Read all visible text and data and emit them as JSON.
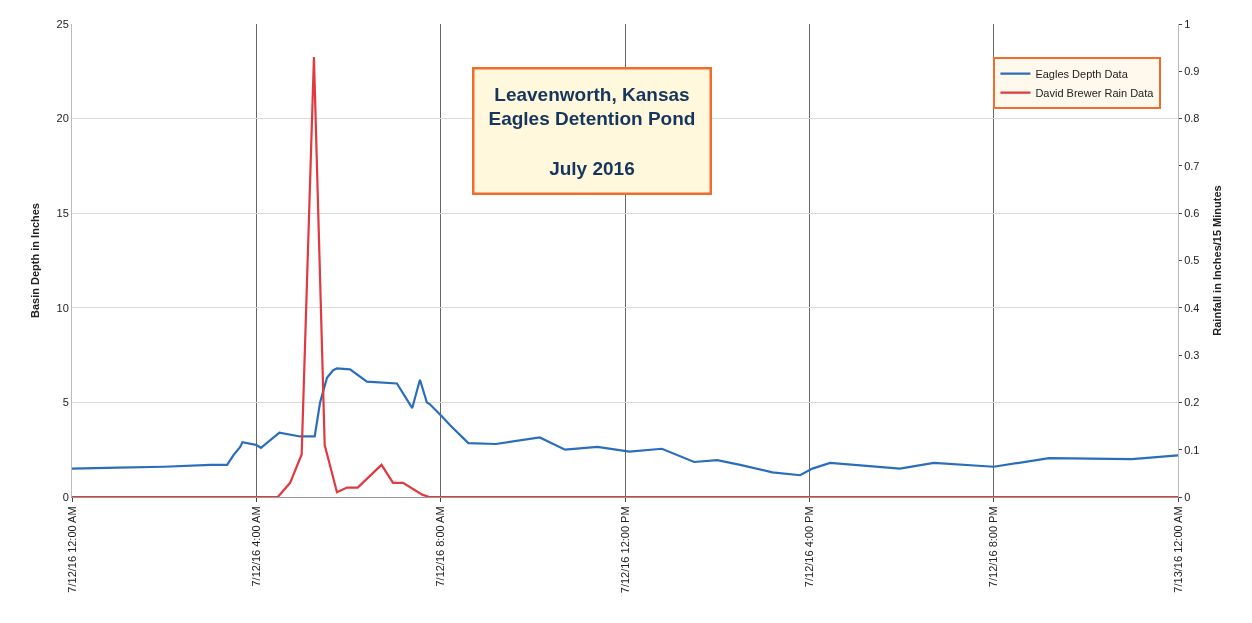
{
  "chart_data": {
    "type": "line",
    "title": "Leavenworth, Kansas\nEagles Detention Pond",
    "subtitle": "July 2016",
    "ylabel": "Basin Depth in Inches",
    "y2label": "Rainfall in Inches/15 Minutes",
    "xlim": [
      "2016-07-12T00:00",
      "2016-07-13T00:00"
    ],
    "xticks": [
      {
        "value": "2016-07-12T00:00",
        "label": "7/12/16 12:00 AM"
      },
      {
        "value": "2016-07-12T04:00",
        "label": "7/12/16 4:00 AM"
      },
      {
        "value": "2016-07-12T08:00",
        "label": "7/12/16 8:00 AM"
      },
      {
        "value": "2016-07-12T12:00",
        "label": "7/12/16 12:00 PM"
      },
      {
        "value": "2016-07-12T16:00",
        "label": "7/12/16 4:00 PM"
      },
      {
        "value": "2016-07-12T20:00",
        "label": "7/12/16 8:00 PM"
      },
      {
        "value": "2016-07-13T00:00",
        "label": "7/13/16 12:00 AM"
      }
    ],
    "ylim": [
      0,
      25
    ],
    "yticks": [
      0,
      5,
      10,
      15,
      20,
      25
    ],
    "y2lim": [
      0,
      1
    ],
    "y2ticks": [
      0,
      0.1,
      0.2,
      0.3,
      0.4,
      0.5,
      0.6,
      0.7,
      0.8,
      0.9,
      1
    ],
    "grid": true,
    "legend": "top right",
    "marker": "none",
    "line_style": "solid",
    "series": [
      {
        "name": "Eagles Depth Data",
        "color": "#2a6ebb",
        "x": [
          "2016-07-12T00:00",
          "2016-07-12T01:00",
          "2016-07-12T02:00",
          "2016-07-12T03:00",
          "2016-07-12T03:22",
          "2016-07-12T03:30",
          "2016-07-12T03:39",
          "2016-07-12T03:42",
          "2016-07-12T04:00",
          "2016-07-12T04:06",
          "2016-07-12T04:30",
          "2016-07-12T04:57",
          "2016-07-12T05:16",
          "2016-07-12T05:23",
          "2016-07-12T05:32",
          "2016-07-12T05:40",
          "2016-07-12T05:45",
          "2016-07-12T06:02",
          "2016-07-12T06:24",
          "2016-07-12T07:03",
          "2016-07-12T07:23",
          "2016-07-12T07:33",
          "2016-07-12T07:42",
          "2016-07-12T07:46",
          "2016-07-12T08:03",
          "2016-07-12T08:12",
          "2016-07-12T08:36",
          "2016-07-12T09:12",
          "2016-07-12T10:09",
          "2016-07-12T10:42",
          "2016-07-12T11:24",
          "2016-07-12T12:06",
          "2016-07-12T12:48",
          "2016-07-12T13:30",
          "2016-07-12T14:00",
          "2016-07-12T14:30",
          "2016-07-12T15:12",
          "2016-07-12T15:48",
          "2016-07-12T16:04",
          "2016-07-12T16:27",
          "2016-07-12T17:58",
          "2016-07-12T18:42",
          "2016-07-12T20:00",
          "2016-07-12T21:12",
          "2016-07-12T23:00",
          "2016-07-13T00:00"
        ],
        "values": [
          1.5,
          1.55,
          1.6,
          1.7,
          1.7,
          2.2,
          2.65,
          2.9,
          2.75,
          2.6,
          3.4,
          3.2,
          3.2,
          5.0,
          6.3,
          6.7,
          6.8,
          6.75,
          6.1,
          6.0,
          4.7,
          6.2,
          5.0,
          4.9,
          4.2,
          3.8,
          2.85,
          2.8,
          3.15,
          2.5,
          2.65,
          2.4,
          2.55,
          1.85,
          1.95,
          1.7,
          1.3,
          1.15,
          1.5,
          1.8,
          1.5,
          1.8,
          1.6,
          2.05,
          2.0,
          2.2
        ]
      },
      {
        "name": "David Brewer Rain Data",
        "color": "#e0393e",
        "axis": "y2",
        "x": [
          "2016-07-12T00:00",
          "2016-07-12T04:28",
          "2016-07-12T04:44",
          "2016-07-12T04:59",
          "2016-07-12T05:15",
          "2016-07-12T05:29",
          "2016-07-12T05:45",
          "2016-07-12T05:58",
          "2016-07-12T06:12",
          "2016-07-12T06:43",
          "2016-07-12T06:58",
          "2016-07-12T07:11",
          "2016-07-12T07:36",
          "2016-07-12T07:45",
          "2016-07-13T00:00"
        ],
        "values": [
          0,
          0,
          0.03,
          0.09,
          0.93,
          0.11,
          0.01,
          0.02,
          0.02,
          0.068,
          0.03,
          0.03,
          0.005,
          0,
          0
        ]
      }
    ]
  }
}
